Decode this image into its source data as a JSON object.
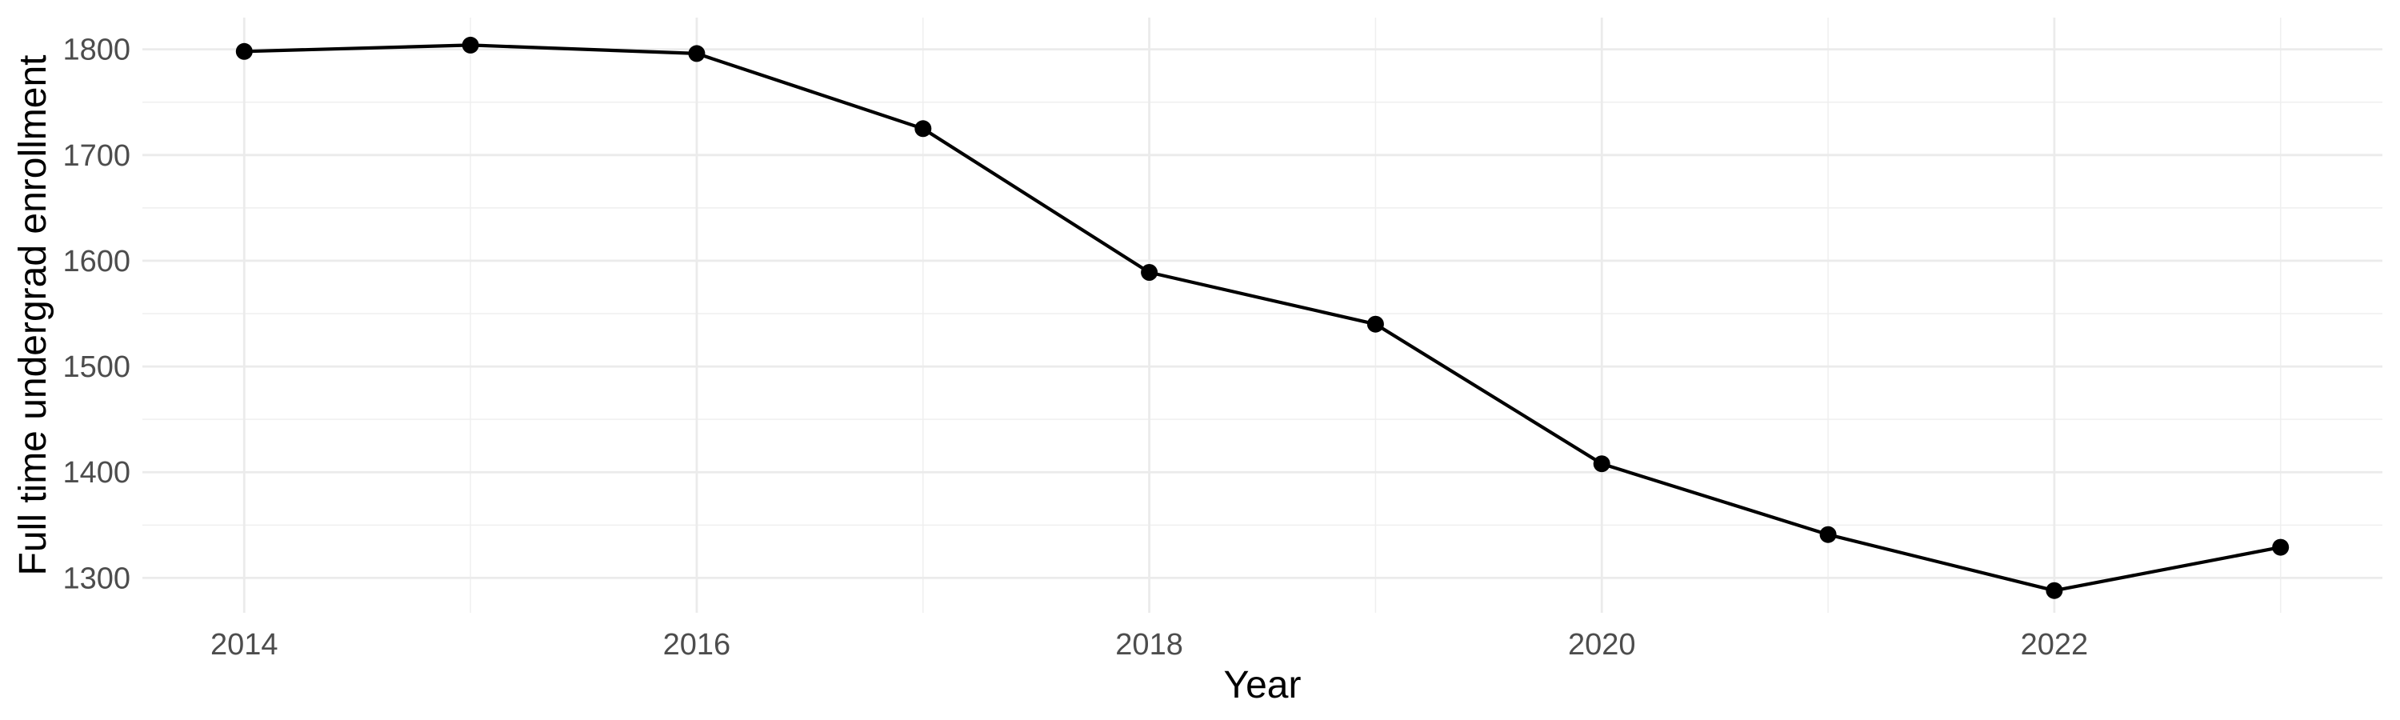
{
  "chart_data": {
    "type": "line",
    "title": "",
    "xlabel": "Year",
    "ylabel": "Full time undergrad enrollment",
    "x": [
      2014,
      2015,
      2016,
      2017,
      2018,
      2019,
      2020,
      2021,
      2022,
      2023
    ],
    "values": [
      1798,
      1804,
      1796,
      1725,
      1589,
      1540,
      1408,
      1341,
      1288,
      1329
    ],
    "series_name": "Full time undergrad enrollment",
    "x_major_ticks": [
      2014,
      2016,
      2018,
      2020,
      2022
    ],
    "x_minor_ticks": [
      2015,
      2017,
      2019,
      2021,
      2023
    ],
    "y_major_ticks": [
      1300,
      1400,
      1500,
      1600,
      1700,
      1800
    ],
    "y_minor_ticks": [
      1350,
      1450,
      1550,
      1650,
      1750
    ],
    "xlim": [
      2013.55,
      2023.45
    ],
    "ylim": [
      1267,
      1830
    ],
    "grid": "on",
    "legend": "none",
    "marker": "filled-circle",
    "colors": {
      "line": "#000000",
      "point": "#000000",
      "grid_major": "#EBEBEB",
      "grid_minor": "#EFEFEF",
      "tick_label": "#4D4D4D",
      "axis_title": "#000000",
      "background": "#FFFFFF"
    }
  }
}
